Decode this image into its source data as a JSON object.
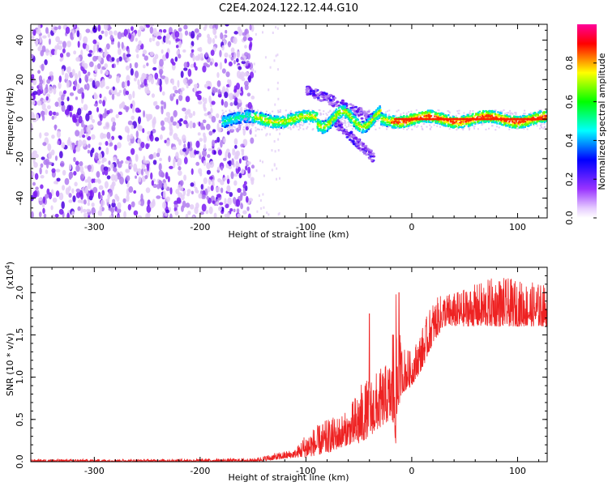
{
  "title": "C2E4.2024.122.12.44.G10",
  "chart_data": [
    {
      "type": "heatmap",
      "xlabel": "Height of straight line (km)",
      "ylabel": "Frequency (Hz)",
      "xlim": [
        -360,
        128
      ],
      "ylim": [
        -50,
        48
      ],
      "xticks": [
        -300,
        -200,
        -100,
        0,
        100
      ],
      "xtick_labels": [
        "-300",
        "-200",
        "-100",
        "0",
        "100"
      ],
      "yticks": [
        -40,
        -20,
        0,
        20,
        40
      ],
      "ytick_labels": [
        "-40",
        "-20",
        "0",
        "20",
        "40"
      ],
      "colorbar": {
        "label": "Normalized spectral amplitude",
        "range": [
          0,
          1
        ],
        "ticks": [
          0.0,
          0.2,
          0.4,
          0.6,
          0.8
        ],
        "tick_labels": [
          "0.0",
          "0.2",
          "0.4",
          "0.6",
          "0.8"
        ],
        "colormap": [
          "#ffffff",
          "#e6ccff",
          "#9933ff",
          "#0000ff",
          "#00ffff",
          "#00ff00",
          "#ffff00",
          "#ff0000",
          "#ff0099"
        ]
      },
      "regions": [
        {
          "x_range": [
            -360,
            -150
          ],
          "freq_range": [
            -50,
            48
          ],
          "amplitude": 0.1,
          "pattern": "scattered noise"
        },
        {
          "x_range": [
            -180,
            128
          ],
          "center_freq": 0,
          "width_hz": 8,
          "amplitude": 0.5,
          "pattern": "narrow band near 0 Hz"
        },
        {
          "x_range": [
            -100,
            -35
          ],
          "branch": "upper",
          "freq_from": 15,
          "freq_to": 0,
          "amplitude": 0.2
        },
        {
          "x_range": [
            -75,
            -35
          ],
          "branch": "lower",
          "freq_from": 0,
          "freq_to": -20,
          "amplitude": 0.2
        },
        {
          "x_range": [
            -20,
            128
          ],
          "center_freq": 0,
          "amplitude": 0.85,
          "pattern": "strong line at 0 Hz"
        }
      ]
    },
    {
      "type": "line",
      "xlabel": "Height of straight line (km)",
      "ylabel": "SNR (10 * v/v)",
      "y_multiplier": "(x10",
      "y_exponent": "4",
      "xlim": [
        -360,
        128
      ],
      "ylim": [
        0,
        2.3
      ],
      "xticks": [
        -300,
        -200,
        -100,
        0,
        100
      ],
      "xtick_labels": [
        "-300",
        "-200",
        "-100",
        "0",
        "100"
      ],
      "yticks": [
        0.0,
        0.5,
        1.0,
        1.5,
        2.0
      ],
      "ytick_labels": [
        "0.0",
        "0.5",
        "1.0",
        "1.5",
        "2.0"
      ],
      "color": "#ee2222",
      "envelope": {
        "x": [
          -360,
          -250,
          -150,
          -130,
          -110,
          -100,
          -80,
          -60,
          -50,
          -40,
          -30,
          -20,
          -15,
          -10,
          0,
          10,
          20,
          30,
          40,
          60,
          80,
          100,
          128
        ],
        "low": [
          0.0,
          0.0,
          0.0,
          0.02,
          0.05,
          0.05,
          0.1,
          0.2,
          0.2,
          0.3,
          0.4,
          0.5,
          0.2,
          0.8,
          0.9,
          1.1,
          1.4,
          1.6,
          1.6,
          1.6,
          1.6,
          1.6,
          1.6
        ],
        "high": [
          0.03,
          0.03,
          0.04,
          0.1,
          0.15,
          0.35,
          0.5,
          0.6,
          0.9,
          1.0,
          1.1,
          1.2,
          2.0,
          1.4,
          1.3,
          1.6,
          1.9,
          2.0,
          2.0,
          2.1,
          2.2,
          2.15,
          2.1
        ]
      },
      "spikes": [
        {
          "x": -40,
          "y": 1.75
        },
        {
          "x": -12,
          "y": 2.0
        },
        {
          "x": -18,
          "y": 1.5
        }
      ]
    }
  ]
}
